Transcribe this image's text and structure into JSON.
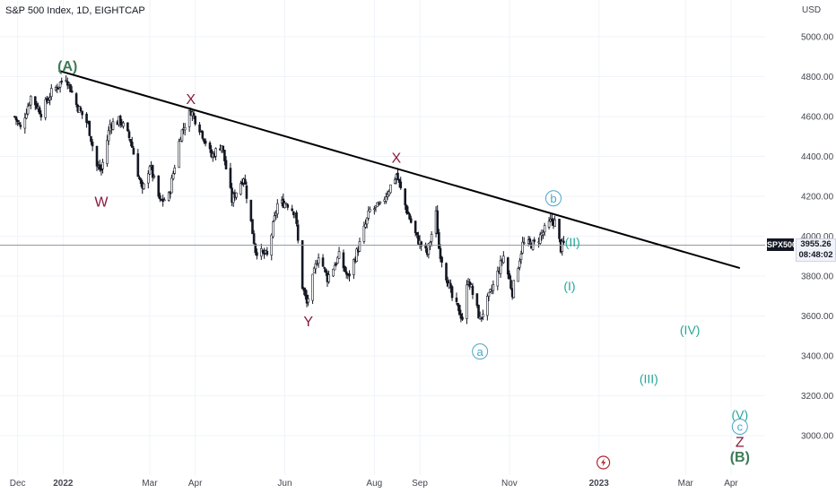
{
  "header": {
    "title": "S&P 500 Index, 1D, EIGHTCAP",
    "currency": "USD"
  },
  "price_label": {
    "symbol": "SPX500",
    "price": "3955.26",
    "countdown": "08:48:02"
  },
  "colors": {
    "bar": "#131722",
    "trendline": "#000000",
    "wave_main": "#3d7a55",
    "wave_sub": "#8b1a3b",
    "wave_minor": "#4aa7c9",
    "wave_impulse": "#26a69a",
    "price_line": "#9598a1"
  },
  "chart_data": {
    "type": "candlestick",
    "title": "S&P 500 Index, 1D, EIGHTCAP",
    "ylabel": "USD",
    "y_ticks": [
      "5000.00",
      "4800.00",
      "4600.00",
      "4400.00",
      "4200.00",
      "4000.00",
      "3800.00",
      "3600.00",
      "3400.00",
      "3200.00",
      "3000.00"
    ],
    "x_ticks": [
      "Dec",
      "2022",
      "Mar",
      "Apr",
      "Jun",
      "Aug",
      "Sep",
      "Nov",
      "2023",
      "Mar",
      "Apr"
    ],
    "ylim": [
      2860,
      5110
    ],
    "price_path": [
      [
        "2021-11-29",
        4600
      ],
      [
        "2021-12-03",
        4540
      ],
      [
        "2021-12-10",
        4700
      ],
      [
        "2021-12-17",
        4620
      ],
      [
        "2021-12-24",
        4720
      ],
      [
        "2022-01-03",
        4800
      ],
      [
        "2022-01-10",
        4660
      ],
      [
        "2022-01-18",
        4560
      ],
      [
        "2022-01-24",
        4350
      ],
      [
        "2022-01-27",
        4330
      ],
      [
        "2022-02-02",
        4560
      ],
      [
        "2022-02-09",
        4580
      ],
      [
        "2022-02-16",
        4480
      ],
      [
        "2022-02-24",
        4220
      ],
      [
        "2022-03-01",
        4360
      ],
      [
        "2022-03-08",
        4170
      ],
      [
        "2022-03-14",
        4200
      ],
      [
        "2022-03-22",
        4510
      ],
      [
        "2022-03-29",
        4630
      ],
      [
        "2022-04-05",
        4530
      ],
      [
        "2022-04-12",
        4400
      ],
      [
        "2022-04-19",
        4460
      ],
      [
        "2022-04-26",
        4180
      ],
      [
        "2022-05-04",
        4300
      ],
      [
        "2022-05-12",
        3930
      ],
      [
        "2022-05-20",
        3900
      ],
      [
        "2022-05-27",
        4160
      ],
      [
        "2022-06-02",
        4170
      ],
      [
        "2022-06-08",
        4120
      ],
      [
        "2022-06-13",
        3750
      ],
      [
        "2022-06-16",
        3660
      ],
      [
        "2022-06-24",
        3910
      ],
      [
        "2022-06-30",
        3790
      ],
      [
        "2022-07-08",
        3900
      ],
      [
        "2022-07-14",
        3790
      ],
      [
        "2022-07-22",
        3960
      ],
      [
        "2022-07-29",
        4130
      ],
      [
        "2022-08-05",
        4150
      ],
      [
        "2022-08-16",
        4310
      ],
      [
        "2022-08-23",
        4130
      ],
      [
        "2022-08-30",
        3990
      ],
      [
        "2022-09-06",
        3910
      ],
      [
        "2022-09-12",
        4110
      ],
      [
        "2022-09-14",
        3940
      ],
      [
        "2022-09-23",
        3690
      ],
      [
        "2022-09-30",
        3590
      ],
      [
        "2022-10-04",
        3790
      ],
      [
        "2022-10-12",
        3580
      ],
      [
        "2022-10-14",
        3620
      ],
      [
        "2022-10-21",
        3750
      ],
      [
        "2022-10-28",
        3900
      ],
      [
        "2022-11-03",
        3720
      ],
      [
        "2022-11-10",
        3960
      ],
      [
        "2022-11-18",
        3960
      ],
      [
        "2022-11-30",
        4080
      ],
      [
        "2022-12-02",
        4070
      ],
      [
        "2022-12-06",
        3940
      ],
      [
        "2022-12-08",
        3960
      ]
    ],
    "trendline": {
      "from": [
        "2021-12-29",
        4830
      ],
      "to": [
        "2023-04-07",
        3840
      ]
    },
    "last_price": 3955.26,
    "wave_labels": [
      {
        "text": "(A)",
        "date": "2022-01-04",
        "price": 4855,
        "style": "main"
      },
      {
        "text": "W",
        "date": "2022-01-27",
        "price": 4175,
        "style": "sub"
      },
      {
        "text": "X",
        "date": "2022-03-29",
        "price": 4688,
        "style": "sub"
      },
      {
        "text": "Y",
        "date": "2022-06-17",
        "price": 3575,
        "style": "sub"
      },
      {
        "text": "X",
        "date": "2022-08-16",
        "price": 4395,
        "style": "sub"
      },
      {
        "text": "a",
        "date": "2022-10-12",
        "price": 3422,
        "style": "minor",
        "circled": true
      },
      {
        "text": "b",
        "date": "2022-12-01",
        "price": 4190,
        "style": "minor",
        "circled": true
      },
      {
        "text": "(II)",
        "date": "2022-12-14",
        "price": 3970,
        "style": "impulse"
      },
      {
        "text": "(I)",
        "date": "2022-12-12",
        "price": 3750,
        "style": "impulse"
      },
      {
        "text": "(IV)",
        "date": "2023-03-04",
        "price": 3530,
        "style": "impulse"
      },
      {
        "text": "(III)",
        "date": "2023-02-04",
        "price": 3285,
        "style": "impulse"
      },
      {
        "text": "(V)",
        "date": "2023-04-07",
        "price": 3105,
        "style": "impulse"
      },
      {
        "text": "c",
        "date": "2023-04-07",
        "price": 3045,
        "style": "minor",
        "circled": true
      },
      {
        "text": "Z",
        "date": "2023-04-07",
        "price": 2970,
        "style": "sub"
      },
      {
        "text": "(B)",
        "date": "2023-04-07",
        "price": 2895,
        "style": "main"
      }
    ]
  }
}
